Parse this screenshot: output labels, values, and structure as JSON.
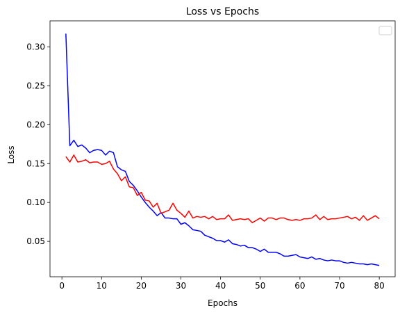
{
  "chart_data": {
    "type": "line",
    "title": "Loss vs Epochs",
    "xlabel": "Epochs",
    "ylabel": "Loss",
    "xlim": [
      -3,
      84
    ],
    "ylim": [
      0.0045,
      0.3335
    ],
    "xticks": [
      0,
      10,
      20,
      30,
      40,
      50,
      60,
      70,
      80
    ],
    "yticks": [
      0.05,
      0.1,
      0.15,
      0.2,
      0.25,
      0.3
    ],
    "ytick_labels": [
      "0.05",
      "0.10",
      "0.15",
      "0.20",
      "0.25",
      "0.30"
    ],
    "grid": false,
    "legend": "top-right (empty)",
    "x": [
      1,
      2,
      3,
      4,
      5,
      6,
      7,
      8,
      9,
      10,
      11,
      12,
      13,
      14,
      15,
      16,
      17,
      18,
      19,
      20,
      21,
      22,
      23,
      24,
      25,
      26,
      27,
      28,
      29,
      30,
      31,
      32,
      33,
      34,
      35,
      36,
      37,
      38,
      39,
      40,
      41,
      42,
      43,
      44,
      45,
      46,
      47,
      48,
      49,
      50,
      51,
      52,
      53,
      54,
      55,
      56,
      57,
      58,
      59,
      60,
      61,
      62,
      63,
      64,
      65,
      66,
      67,
      68,
      69,
      70,
      71,
      72,
      73,
      74,
      75,
      76,
      77,
      78,
      79,
      80
    ],
    "series": [
      {
        "color": "#0000ff",
        "values": [
          0.317,
          0.173,
          0.18,
          0.172,
          0.174,
          0.17,
          0.164,
          0.167,
          0.168,
          0.167,
          0.161,
          0.166,
          0.164,
          0.146,
          0.142,
          0.14,
          0.127,
          0.122,
          0.115,
          0.107,
          0.1,
          0.094,
          0.089,
          0.083,
          0.087,
          0.08,
          0.08,
          0.079,
          0.079,
          0.072,
          0.074,
          0.07,
          0.065,
          0.064,
          0.063,
          0.058,
          0.056,
          0.054,
          0.051,
          0.051,
          0.049,
          0.052,
          0.047,
          0.046,
          0.044,
          0.045,
          0.042,
          0.042,
          0.04,
          0.037,
          0.04,
          0.036,
          0.036,
          0.036,
          0.034,
          0.031,
          0.031,
          0.032,
          0.033,
          0.03,
          0.029,
          0.028,
          0.03,
          0.027,
          0.028,
          0.026,
          0.025,
          0.026,
          0.025,
          0.025,
          0.023,
          0.022,
          0.023,
          0.022,
          0.021,
          0.021,
          0.02,
          0.021,
          0.02,
          0.019
        ]
      },
      {
        "color": "#ff0000",
        "values": [
          0.159,
          0.152,
          0.161,
          0.152,
          0.153,
          0.155,
          0.151,
          0.152,
          0.152,
          0.149,
          0.15,
          0.153,
          0.143,
          0.137,
          0.128,
          0.133,
          0.12,
          0.119,
          0.109,
          0.113,
          0.103,
          0.102,
          0.094,
          0.099,
          0.086,
          0.088,
          0.09,
          0.099,
          0.09,
          0.086,
          0.081,
          0.089,
          0.08,
          0.082,
          0.081,
          0.082,
          0.079,
          0.082,
          0.078,
          0.079,
          0.079,
          0.084,
          0.077,
          0.078,
          0.079,
          0.078,
          0.079,
          0.074,
          0.077,
          0.08,
          0.076,
          0.08,
          0.08,
          0.078,
          0.08,
          0.08,
          0.078,
          0.077,
          0.078,
          0.077,
          0.079,
          0.079,
          0.08,
          0.084,
          0.078,
          0.082,
          0.078,
          0.079,
          0.079,
          0.08,
          0.081,
          0.082,
          0.079,
          0.081,
          0.077,
          0.083,
          0.077,
          0.08,
          0.083,
          0.079
        ]
      }
    ]
  },
  "legend": {
    "entries": []
  }
}
